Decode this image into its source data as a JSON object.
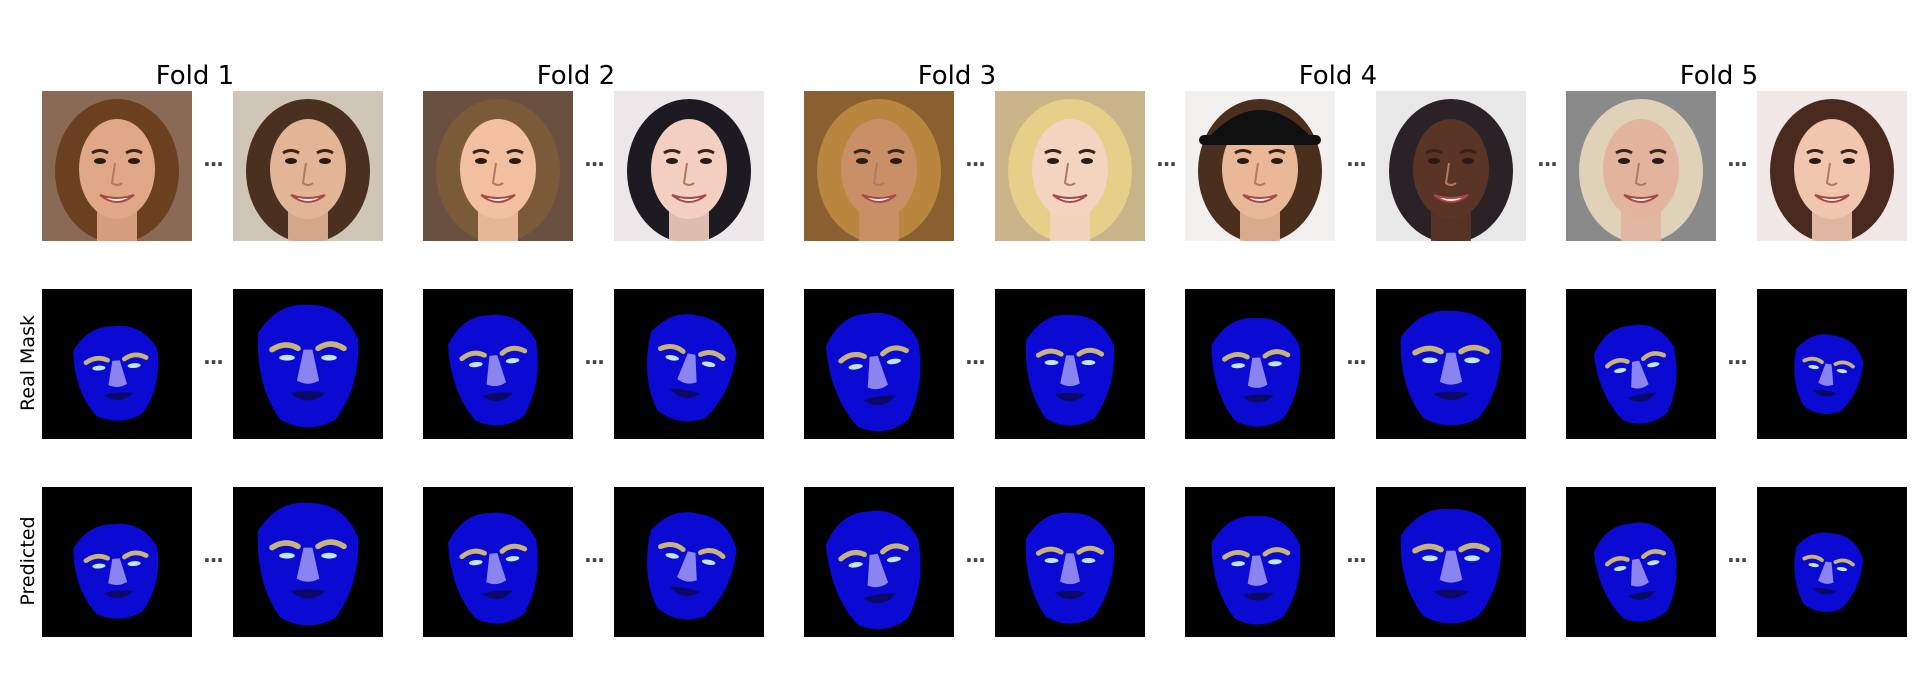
{
  "folds": [
    {
      "title": "Fold 1"
    },
    {
      "title": "Fold 2"
    },
    {
      "title": "Fold 3"
    },
    {
      "title": "Fold 4"
    },
    {
      "title": "Fold 5"
    }
  ],
  "rows": {
    "real_mask_label": "Real Mask",
    "predicted_label": "Predicted"
  },
  "ellipsis": "...",
  "colors": {
    "skin": "#0a0ad2",
    "nose": "#8a84f0",
    "eyebrow": "#c8b47a",
    "eye": "#bfe6f2",
    "mouth": "#0a0a66",
    "background": "#000000"
  }
}
